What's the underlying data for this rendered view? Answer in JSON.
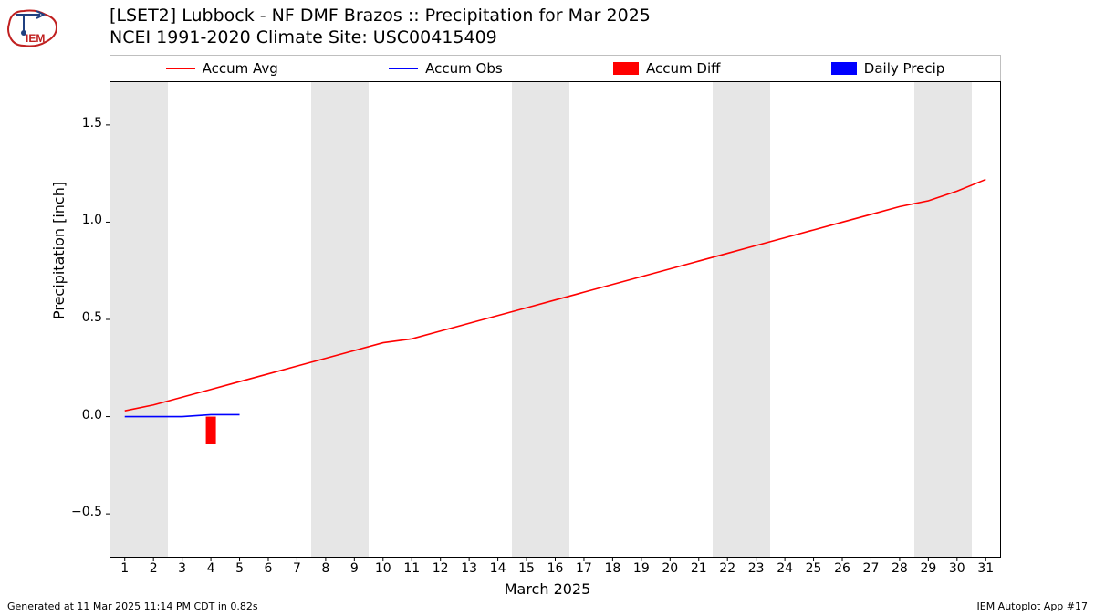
{
  "title_line1": "[LSET2] Lubbock - NF DMF Brazos :: Precipitation for Mar 2025",
  "title_line2": "NCEI 1991-2020 Climate Site: USC00415409",
  "ylabel": "Precipitation [inch]",
  "xlabel": "March 2025",
  "footer_left": "Generated at 11 Mar 2025 11:14 PM CDT in 0.82s",
  "footer_right": "IEM Autoplot App #17",
  "legend": {
    "accum_avg": {
      "label": "Accum Avg",
      "color": "#ff0000",
      "type": "line"
    },
    "accum_obs": {
      "label": "Accum Obs",
      "color": "#0000ff",
      "type": "line"
    },
    "accum_diff": {
      "label": "Accum Diff",
      "color": "#ff0000",
      "type": "patch"
    },
    "daily_precip": {
      "label": "Daily Precip",
      "color": "#0000ff",
      "type": "patch"
    }
  },
  "chart": {
    "type": "line+bar",
    "background_color": "#ffffff",
    "weekend_band_color": "#e6e6e6",
    "axis_color": "#000000",
    "xlim": [
      0.5,
      31.5
    ],
    "xticks": [
      1,
      2,
      3,
      4,
      5,
      6,
      7,
      8,
      9,
      10,
      11,
      12,
      13,
      14,
      15,
      16,
      17,
      18,
      19,
      20,
      21,
      22,
      23,
      24,
      25,
      26,
      27,
      28,
      29,
      30,
      31
    ],
    "ylim": [
      -0.72,
      1.72
    ],
    "yticks": [
      -0.5,
      0.0,
      0.5,
      1.0,
      1.5
    ],
    "ytick_labels": [
      "−0.5",
      "0.0",
      "0.5",
      "1.0",
      "1.5"
    ],
    "weekend_pairs": [
      [
        1,
        2
      ],
      [
        8,
        9
      ],
      [
        15,
        16
      ],
      [
        22,
        23
      ],
      [
        29,
        30
      ]
    ],
    "accum_avg": {
      "color": "#ff0000",
      "line_width": 1.6,
      "x": [
        1,
        2,
        3,
        4,
        5,
        6,
        7,
        8,
        9,
        10,
        11,
        12,
        13,
        14,
        15,
        16,
        17,
        18,
        19,
        20,
        21,
        22,
        23,
        24,
        25,
        26,
        27,
        28,
        29,
        30,
        31
      ],
      "y": [
        0.03,
        0.06,
        0.1,
        0.14,
        0.18,
        0.22,
        0.26,
        0.3,
        0.34,
        0.38,
        0.4,
        0.44,
        0.48,
        0.52,
        0.56,
        0.6,
        0.64,
        0.68,
        0.72,
        0.76,
        0.8,
        0.84,
        0.88,
        0.92,
        0.96,
        1.0,
        1.04,
        1.08,
        1.11,
        1.16,
        1.22
      ]
    },
    "accum_obs": {
      "color": "#0000ff",
      "line_width": 1.6,
      "x": [
        1,
        2,
        3,
        4,
        5
      ],
      "y": [
        0,
        0,
        0,
        0.01,
        0.01
      ]
    },
    "accum_diff": {
      "color": "#ff0000",
      "bar_width": 0.35,
      "x": [
        4
      ],
      "y": [
        -0.14
      ]
    },
    "daily_precip": {
      "color": "#0000ff",
      "bar_width": 0.35,
      "x": [],
      "y": []
    }
  },
  "logo": {
    "label": "IEM",
    "outline_color": "#c02020",
    "accent_color": "#204080"
  }
}
